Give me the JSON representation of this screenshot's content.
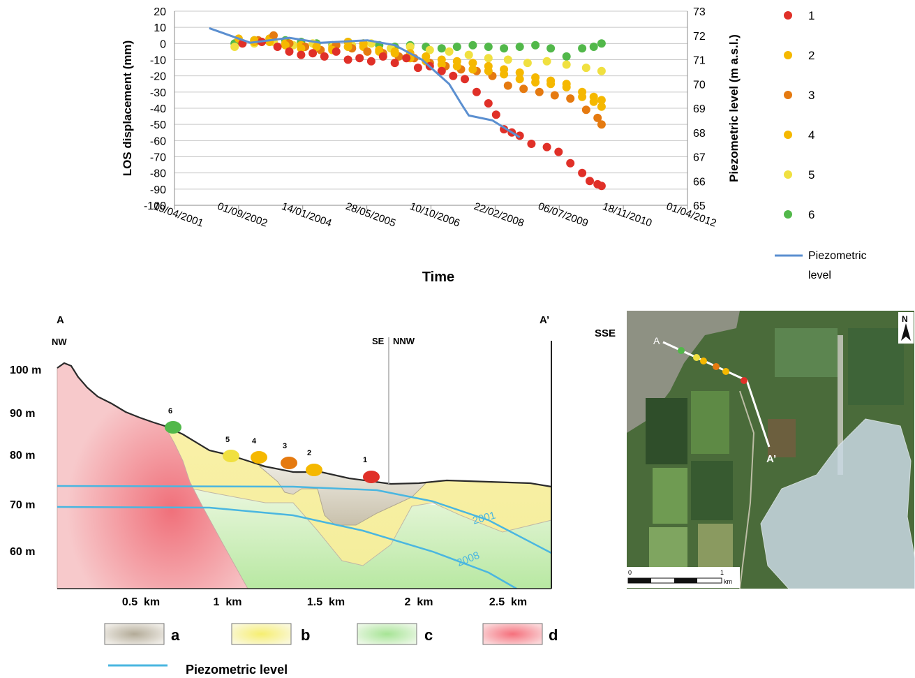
{
  "chart_data": [
    {
      "type": "scatter",
      "xlabel": "Time",
      "ylabel": "LOS displacement (mm)",
      "y2label": "Piezometric level (m a.s.l.)",
      "ylim": [
        -100,
        20
      ],
      "y2lim": [
        65,
        73
      ],
      "yticks": [
        20,
        10,
        0,
        -10,
        -20,
        -30,
        -40,
        -50,
        -60,
        -70,
        -80,
        -90,
        -100
      ],
      "y2ticks": [
        73,
        72,
        71,
        70,
        69,
        68,
        67,
        66,
        65
      ],
      "xticks": [
        "19/04/2001",
        "01/09/2002",
        "14/01/2004",
        "28/05/2005",
        "10/10/2006",
        "22/02/2008",
        "06/07/2009",
        "18/11/2010",
        "01/04/2012"
      ],
      "grid": true,
      "legend": "right",
      "series": [
        {
          "name": "1",
          "color": "#e03028",
          "x": [
            "2002-10-01",
            "2003-03-01",
            "2003-07-01",
            "2003-10-01",
            "2004-01-01",
            "2004-04-01",
            "2004-07-01",
            "2004-10-01",
            "2005-01-01",
            "2005-04-01",
            "2005-07-01",
            "2005-10-01",
            "2006-01-01",
            "2006-04-01",
            "2006-07-01",
            "2006-10-01",
            "2007-01-01",
            "2007-04-01",
            "2007-07-01",
            "2007-10-01",
            "2008-01-01",
            "2008-03-01",
            "2008-05-01",
            "2008-07-01",
            "2008-09-01",
            "2008-12-01",
            "2009-04-01",
            "2009-07-01",
            "2009-10-01",
            "2010-01-01",
            "2010-03-01",
            "2010-05-01",
            "2010-06-01"
          ],
          "y": [
            0,
            1,
            -2,
            -5,
            -7,
            -6,
            -8,
            -5,
            -10,
            -9,
            -11,
            -8,
            -12,
            -9,
            -15,
            -14,
            -17,
            -20,
            -22,
            -30,
            -37,
            -44,
            -53,
            -55,
            -57,
            -62,
            -64,
            -67,
            -74,
            -80,
            -85,
            -87,
            -88
          ]
        },
        {
          "name": "2",
          "color": "#f5b800",
          "x": [
            "2002-09-01",
            "2003-01-01",
            "2003-05-01",
            "2003-09-01",
            "2004-01-01",
            "2004-05-01",
            "2004-09-01",
            "2005-01-01",
            "2005-05-01",
            "2005-09-01",
            "2006-01-01",
            "2006-05-01",
            "2006-09-01",
            "2007-01-01",
            "2007-05-01",
            "2007-09-01",
            "2008-01-01",
            "2008-05-01",
            "2008-09-01",
            "2009-01-01",
            "2009-05-01",
            "2009-09-01",
            "2010-01-01",
            "2010-04-01",
            "2010-06-01"
          ],
          "y": [
            3,
            2,
            1,
            -1,
            -3,
            -2,
            -4,
            -2,
            0,
            -5,
            -6,
            -9,
            -11,
            -13,
            -14,
            -16,
            -17,
            -19,
            -22,
            -24,
            -25,
            -27,
            -30,
            -33,
            -35
          ]
        },
        {
          "name": "3",
          "color": "#e57a10",
          "x": [
            "2003-02-01",
            "2003-06-01",
            "2003-10-01",
            "2004-02-01",
            "2004-06-01",
            "2004-10-01",
            "2005-02-01",
            "2005-06-01",
            "2005-10-01",
            "2006-02-01",
            "2006-06-01",
            "2006-10-01",
            "2007-02-01",
            "2007-06-01",
            "2007-10-01",
            "2008-02-01",
            "2008-06-01",
            "2008-10-01",
            "2009-02-01",
            "2009-06-01",
            "2009-10-01",
            "2010-02-01",
            "2010-05-01",
            "2010-06-01"
          ],
          "y": [
            2,
            5,
            0,
            -2,
            -4,
            -1,
            -3,
            -5,
            -6,
            -8,
            -9,
            -12,
            -14,
            -16,
            -17,
            -20,
            -26,
            -28,
            -30,
            -32,
            -34,
            -41,
            -46,
            -50
          ]
        },
        {
          "name": "4",
          "color": "#f5b800",
          "x": [
            "2003-01-01",
            "2003-05-01",
            "2003-09-01",
            "2004-01-01",
            "2004-05-01",
            "2004-09-01",
            "2005-01-01",
            "2005-05-01",
            "2005-09-01",
            "2006-01-01",
            "2006-05-01",
            "2006-09-01",
            "2007-01-01",
            "2007-05-01",
            "2007-09-01",
            "2008-01-01",
            "2008-05-01",
            "2008-09-01",
            "2009-01-01",
            "2009-05-01",
            "2009-09-01",
            "2010-01-01",
            "2010-04-01",
            "2010-06-01"
          ],
          "y": [
            1,
            3,
            0,
            -1,
            -2,
            -3,
            1,
            -2,
            -4,
            -5,
            -6,
            -8,
            -10,
            -11,
            -12,
            -14,
            -16,
            -18,
            -21,
            -23,
            -25,
            -33,
            -36,
            -39
          ]
        },
        {
          "name": "5",
          "color": "#f0e040",
          "x": [
            "2002-08-01",
            "2003-01-01",
            "2003-06-01",
            "2003-11-01",
            "2004-04-01",
            "2004-09-01",
            "2005-02-01",
            "2005-07-01",
            "2005-12-01",
            "2006-05-01",
            "2006-10-01",
            "2007-03-01",
            "2007-08-01",
            "2008-01-01",
            "2008-06-01",
            "2008-11-01",
            "2009-04-01",
            "2009-09-01",
            "2010-02-01",
            "2010-06-01"
          ],
          "y": [
            -2,
            0,
            1,
            -1,
            0,
            -2,
            -1,
            0,
            -3,
            -2,
            -4,
            -5,
            -7,
            -9,
            -10,
            -12,
            -11,
            -13,
            -15,
            -17
          ]
        },
        {
          "name": "6",
          "color": "#52b84a",
          "x": [
            "2002-08-01",
            "2003-01-01",
            "2003-05-01",
            "2003-09-01",
            "2004-01-01",
            "2004-05-01",
            "2004-09-01",
            "2005-01-01",
            "2005-05-01",
            "2005-09-01",
            "2006-01-01",
            "2006-05-01",
            "2006-09-01",
            "2007-01-01",
            "2007-05-01",
            "2007-09-01",
            "2008-01-01",
            "2008-05-01",
            "2008-09-01",
            "2009-01-01",
            "2009-05-01",
            "2009-09-01",
            "2010-01-01",
            "2010-04-01",
            "2010-06-01"
          ],
          "y": [
            0,
            2,
            3,
            2,
            1,
            0,
            -1,
            1,
            0,
            -1,
            -2,
            -1,
            -2,
            -3,
            -2,
            -1,
            -2,
            -3,
            -2,
            -1,
            -3,
            -8,
            -3,
            -2,
            0
          ]
        }
      ],
      "line": {
        "name": "Piezometric level",
        "color": "#5b8fd0",
        "axis": "y2",
        "x": [
          "2002-01-15",
          "2002-12-01",
          "2003-10-01",
          "2004-06-01",
          "2005-06-01",
          "2006-01-01",
          "2006-08-01",
          "2007-03-01",
          "2007-06-01",
          "2007-08-01",
          "2008-02-01",
          "2008-09-01"
        ],
        "y": [
          72.3,
          71.7,
          71.9,
          71.7,
          71.8,
          71.6,
          71.0,
          70.0,
          69.2,
          68.7,
          68.5,
          67.8
        ]
      }
    }
  ],
  "section": {
    "end_left": "A",
    "end_right": "A’",
    "dir_left": "NW",
    "dir_mid_left": "SE",
    "dir_mid_right": "NNW",
    "elev_labels": [
      "100 m",
      "90 m",
      "80 m",
      "70 m",
      "60 m"
    ],
    "dist_labels": [
      "0.5  km",
      "1  km",
      "1.5  km",
      "2  km",
      "2.5  km"
    ],
    "point_labels": [
      "6",
      "5",
      "4",
      "3",
      "2",
      "1"
    ],
    "line_labels": [
      "2001",
      "2008"
    ],
    "line_color": "#4ab6e0"
  },
  "section_legend": {
    "items": [
      {
        "key": "a",
        "color": "#a89e8a"
      },
      {
        "key": "b",
        "color": "#f2ea7a"
      },
      {
        "key": "c",
        "color": "#9fe08a"
      },
      {
        "key": "d",
        "color": "#f37b84"
      }
    ],
    "piezo_label": "Piezometric level"
  },
  "map": {
    "direction": "SSE",
    "north": "N",
    "label_a": "A",
    "label_a2": "A’",
    "scale_zero": "0",
    "scale_one": "1",
    "scale_unit": "km"
  }
}
